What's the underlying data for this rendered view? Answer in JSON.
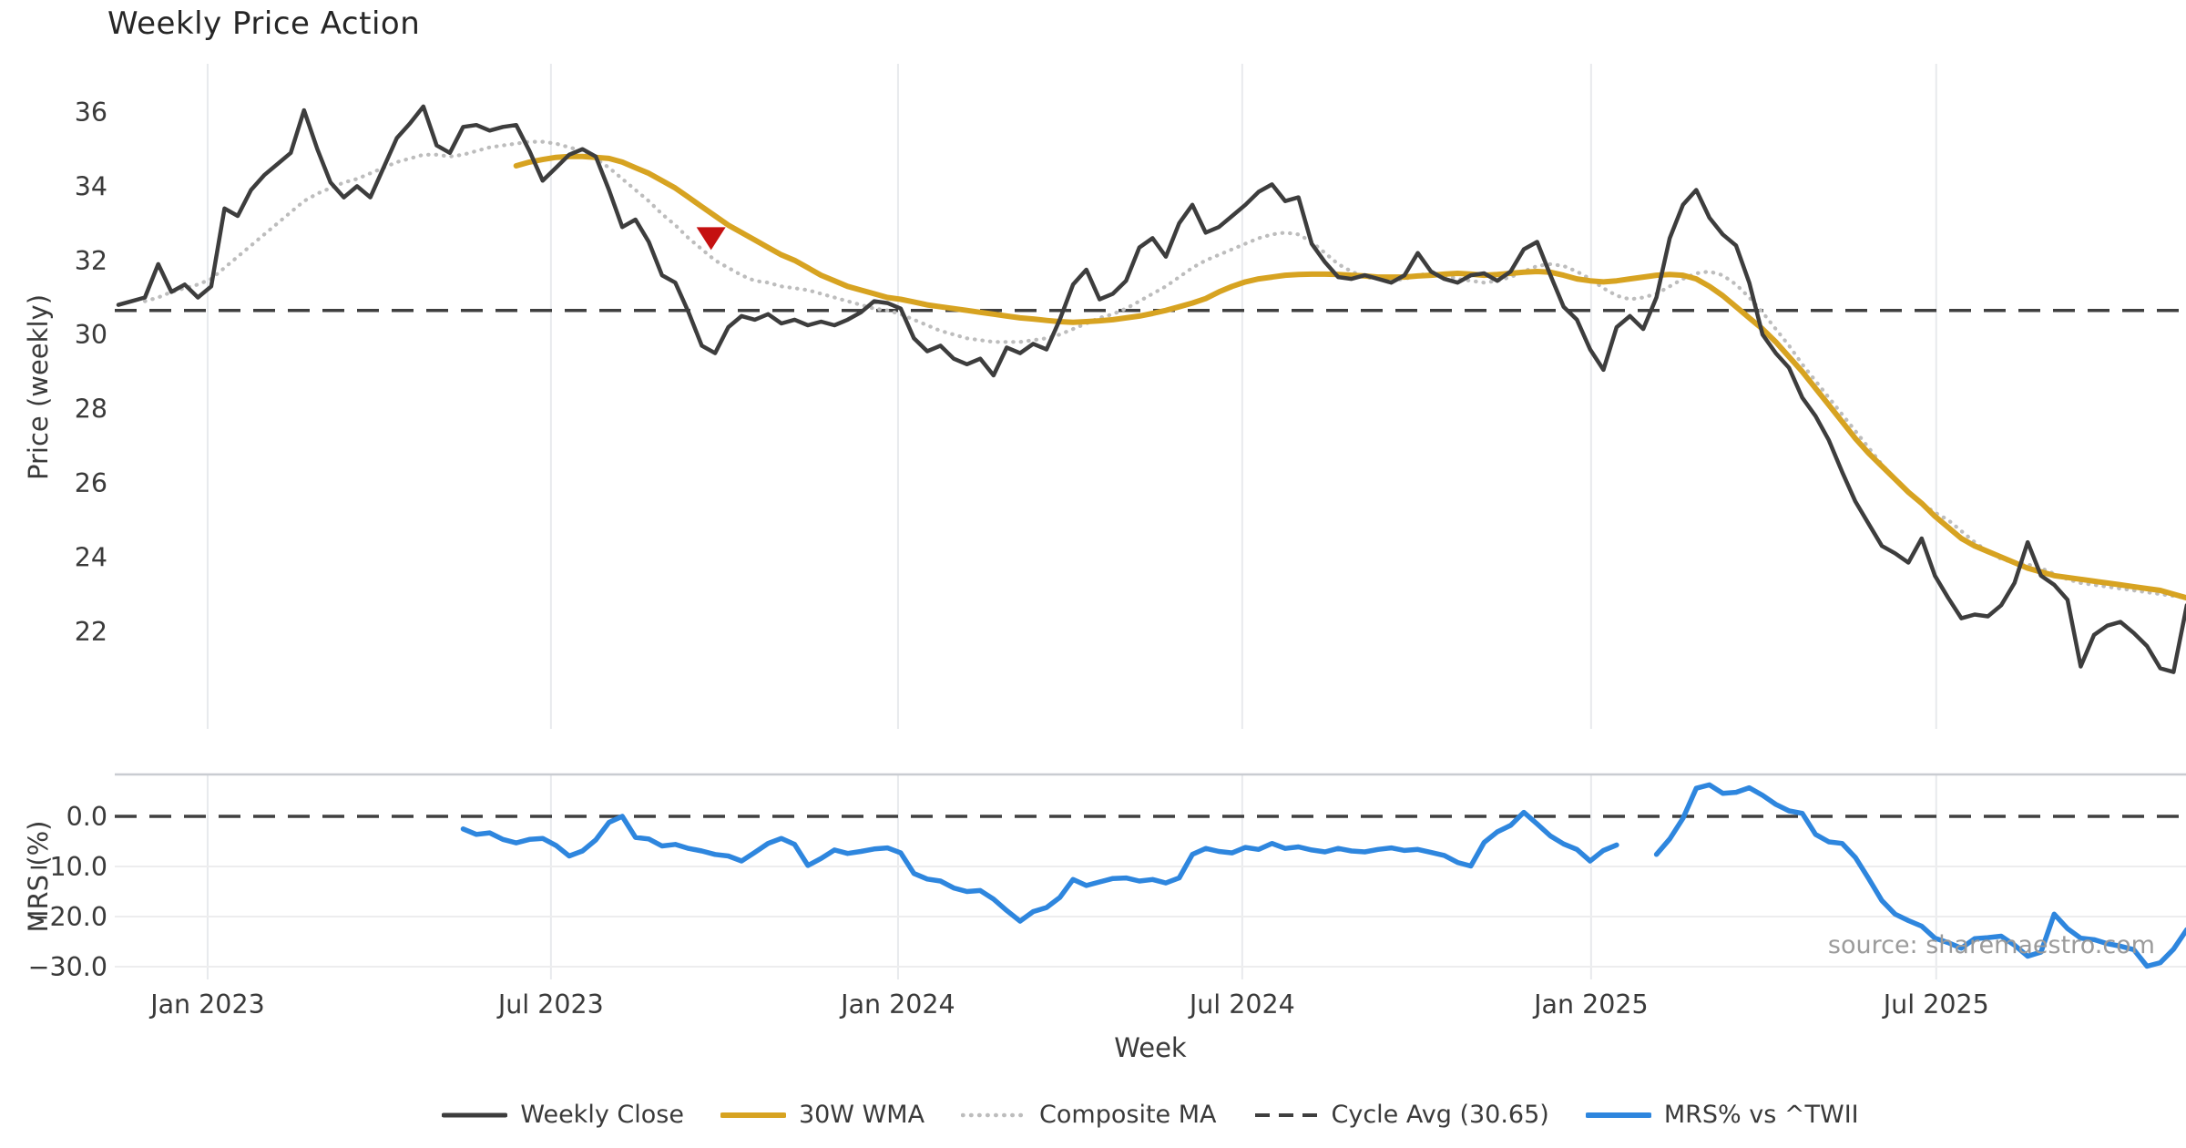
{
  "title": "Weekly Price Action",
  "source_note": "source: sharemaestro.com",
  "colors": {
    "close": "#3d3d3d",
    "wma": "#d7a321",
    "composite": "#bdbdbd",
    "cycle_avg": "#3f3f3f",
    "mrs": "#2e86de",
    "marker": "#c51111",
    "grid": "#e8eaed",
    "spine": "#c9ccd1",
    "tick_text": "#3a3a3a",
    "source_text": "#9b9b9b"
  },
  "legend": [
    {
      "label": "Weekly Close",
      "color": "#3d3d3d",
      "style": "solid",
      "width": 5
    },
    {
      "label": "30W WMA",
      "color": "#d7a321",
      "style": "solid",
      "width": 6
    },
    {
      "label": "Composite MA",
      "color": "#bdbdbd",
      "style": "dotted",
      "width": 4.5
    },
    {
      "label": "Cycle Avg (30.65)",
      "color": "#3f3f3f",
      "style": "dashed",
      "width": 4
    },
    {
      "label": "MRS% vs ^TWII",
      "color": "#2e86de",
      "style": "solid",
      "width": 6
    }
  ],
  "chart_data": {
    "type": "line",
    "xlabel": "Week",
    "x_unit": "weeks since mid-Nov 2022, weekly data",
    "xticks": [
      {
        "label": "Jan 2023",
        "week": 6.73
      },
      {
        "label": "Jul 2023",
        "week": 32.62
      },
      {
        "label": "Jan 2024",
        "week": 58.8
      },
      {
        "label": "Jul 2024",
        "week": 84.76
      },
      {
        "label": "Jan 2025",
        "week": 111.07
      },
      {
        "label": "Jul 2025",
        "week": 137.1
      }
    ],
    "panels": [
      {
        "name": "price",
        "ylabel": "Price (weekly)",
        "yticks": [
          36,
          34,
          32,
          30,
          28,
          26,
          24,
          22
        ],
        "ylim": [
          20.3,
          37.3
        ],
        "hline": {
          "value": 30.65,
          "label": "Cycle Avg (30.65)"
        },
        "marker": {
          "type": "triangle-down",
          "week": 44.7,
          "value": 32.6
        },
        "series": [
          {
            "name": "Weekly Close",
            "color": "#3d3d3d",
            "width": 4.5,
            "dash": "solid",
            "start_week": 0,
            "values": [
              30.8,
              30.9,
              31.0,
              31.9,
              31.15,
              31.35,
              31.0,
              31.3,
              33.4,
              33.2,
              33.9,
              34.3,
              34.6,
              34.9,
              36.05,
              35.0,
              34.1,
              33.7,
              34.0,
              33.7,
              34.5,
              35.3,
              35.7,
              36.15,
              35.1,
              34.9,
              35.6,
              35.65,
              35.5,
              35.6,
              35.65,
              34.95,
              34.15,
              34.5,
              34.85,
              35.0,
              34.8,
              33.9,
              32.9,
              33.1,
              32.5,
              31.6,
              31.4,
              30.6,
              29.7,
              29.5,
              30.2,
              30.5,
              30.4,
              30.55,
              30.3,
              30.4,
              30.25,
              30.35,
              30.25,
              30.4,
              30.6,
              30.9,
              30.85,
              30.7,
              29.9,
              29.55,
              29.7,
              29.35,
              29.2,
              29.35,
              28.9,
              29.65,
              29.5,
              29.75,
              29.6,
              30.4,
              31.35,
              31.75,
              30.95,
              31.1,
              31.45,
              32.35,
              32.6,
              32.1,
              33.0,
              33.5,
              32.75,
              32.9,
              33.2,
              33.5,
              33.85,
              34.05,
              33.6,
              33.7,
              32.45,
              31.95,
              31.55,
              31.5,
              31.6,
              31.5,
              31.4,
              31.6,
              32.2,
              31.7,
              31.5,
              31.4,
              31.6,
              31.65,
              31.45,
              31.7,
              32.3,
              32.5,
              31.6,
              30.75,
              30.4,
              29.6,
              29.05,
              30.2,
              30.5,
              30.15,
              31.0,
              32.6,
              33.5,
              33.9,
              33.15,
              32.7,
              32.4,
              31.4,
              30.0,
              29.5,
              29.1,
              28.3,
              27.8,
              27.15,
              26.3,
              25.5,
              24.9,
              24.3,
              24.1,
              23.85,
              24.5,
              23.5,
              22.9,
              22.35,
              22.45,
              22.4,
              22.7,
              23.3,
              24.4,
              23.5,
              23.25,
              22.85,
              21.05,
              21.9,
              22.15,
              22.25,
              21.95,
              21.6,
              21.0,
              20.9,
              22.7
            ]
          },
          {
            "name": "30W WMA",
            "color": "#d7a321",
            "width": 6,
            "dash": "solid",
            "start_week": 30,
            "values": [
              34.55,
              34.65,
              34.72,
              34.78,
              34.8,
              34.8,
              34.78,
              34.75,
              34.65,
              34.5,
              34.35,
              34.15,
              33.95,
              33.7,
              33.45,
              33.2,
              32.95,
              32.75,
              32.55,
              32.35,
              32.15,
              32.0,
              31.8,
              31.6,
              31.45,
              31.3,
              31.2,
              31.1,
              31.0,
              30.95,
              30.88,
              30.8,
              30.75,
              30.7,
              30.65,
              30.6,
              30.55,
              30.5,
              30.45,
              30.42,
              30.38,
              30.35,
              30.33,
              30.35,
              30.37,
              30.4,
              30.45,
              30.5,
              30.57,
              30.65,
              30.75,
              30.85,
              30.97,
              31.15,
              31.3,
              31.42,
              31.5,
              31.55,
              31.6,
              31.62,
              31.63,
              31.63,
              31.62,
              31.6,
              31.58,
              31.55,
              31.55,
              31.55,
              31.58,
              31.6,
              31.63,
              31.65,
              31.63,
              31.6,
              31.62,
              31.65,
              31.68,
              31.7,
              31.68,
              31.6,
              31.5,
              31.45,
              31.42,
              31.45,
              31.5,
              31.55,
              31.6,
              31.62,
              31.6,
              31.5,
              31.3,
              31.05,
              30.75,
              30.45,
              30.15,
              29.8,
              29.4,
              29.0,
              28.55,
              28.1,
              27.65,
              27.2,
              26.8,
              26.45,
              26.1,
              25.75,
              25.45,
              25.1,
              24.8,
              24.5,
              24.3,
              24.15,
              24.0,
              23.85,
              23.7,
              23.6,
              23.5,
              23.45,
              23.4,
              23.35,
              23.3,
              23.25,
              23.2,
              23.15,
              23.1,
              23.0,
              22.9
            ]
          },
          {
            "name": "Composite MA",
            "color": "#bdbdbd",
            "width": 4.2,
            "dash": "dotted",
            "start_week": 2,
            "values": [
              30.9,
              31.0,
              31.15,
              31.25,
              31.35,
              31.5,
              31.8,
              32.1,
              32.4,
              32.7,
              33.0,
              33.3,
              33.6,
              33.8,
              33.95,
              34.1,
              34.2,
              34.35,
              34.5,
              34.65,
              34.75,
              34.85,
              34.85,
              34.8,
              34.85,
              34.95,
              35.05,
              35.1,
              35.15,
              35.2,
              35.2,
              35.15,
              35.05,
              34.95,
              34.75,
              34.5,
              34.2,
              33.9,
              33.6,
              33.25,
              32.95,
              32.6,
              32.3,
              32.0,
              31.8,
              31.6,
              31.45,
              31.4,
              31.3,
              31.25,
              31.2,
              31.1,
              31.0,
              30.9,
              30.8,
              30.7,
              30.65,
              30.55,
              30.4,
              30.25,
              30.1,
              30.0,
              29.9,
              29.85,
              29.8,
              29.8,
              29.8,
              29.85,
              29.9,
              30.0,
              30.15,
              30.3,
              30.45,
              30.55,
              30.7,
              30.9,
              31.1,
              31.3,
              31.55,
              31.8,
              32.0,
              32.15,
              32.3,
              32.45,
              32.6,
              32.7,
              32.75,
              32.7,
              32.5,
              32.2,
              31.9,
              31.7,
              31.55,
              31.5,
              31.45,
              31.5,
              31.6,
              31.65,
              31.6,
              31.5,
              31.45,
              31.4,
              31.45,
              31.55,
              31.7,
              31.85,
              31.9,
              31.85,
              31.7,
              31.5,
              31.25,
              31.05,
              30.95,
              31.0,
              31.1,
              31.3,
              31.5,
              31.65,
              31.7,
              31.6,
              31.35,
              31.0,
              30.6,
              30.15,
              29.7,
              29.2,
              28.75,
              28.3,
              27.85,
              27.4,
              26.95,
              26.5,
              26.1,
              25.75,
              25.45,
              25.2,
              25.0,
              24.7,
              24.4,
              24.15,
              23.95,
              23.85,
              23.8,
              23.7,
              23.55,
              23.4,
              23.3,
              23.25,
              23.2,
              23.15,
              23.1,
              23.05,
              23.0,
              22.95,
              22.9
            ]
          }
        ]
      },
      {
        "name": "mrs",
        "ylabel": "MRS (%)",
        "yticks": [
          0.0,
          -10.0,
          -20.0,
          -30.0
        ],
        "ytick_labels": [
          "0.0",
          "−10.0",
          "−20.0",
          "−30.0"
        ],
        "ylim": [
          -32.5,
          8.4
        ],
        "hline": {
          "value": 0.0
        },
        "series": [
          {
            "name": "MRS% vs ^TWII",
            "color": "#2e86de",
            "width": 5.5,
            "dash": "solid",
            "start_week": 26,
            "values": [
              -2.5,
              -3.6,
              -3.3,
              -4.6,
              -5.3,
              -4.6,
              -4.4,
              -5.8,
              -7.9,
              -6.9,
              -4.7,
              -1.2,
              0.0,
              -4.2,
              -4.5,
              -5.9,
              -5.6,
              -6.4,
              -6.9,
              -7.6,
              -7.9,
              -8.9,
              -7.2,
              -5.4,
              -4.4,
              -5.6,
              -9.8,
              -8.4,
              -6.7,
              -7.4,
              -7.0,
              -6.5,
              -6.3,
              -7.3,
              -11.4,
              -12.5,
              -12.9,
              -14.3,
              -15.0,
              -14.8,
              -16.5,
              -18.8,
              -20.9,
              -19.0,
              -18.2,
              -16.2,
              -12.6,
              -13.8,
              -13.1,
              -12.4,
              -12.3,
              -12.9,
              -12.6,
              -13.3,
              -12.3,
              -7.6,
              -6.4,
              -7.0,
              -7.3,
              -6.2,
              -6.6,
              -5.4,
              -6.4,
              -6.1,
              -6.7,
              -7.1,
              -6.4,
              -6.9,
              -7.1,
              -6.6,
              -6.3,
              -6.8,
              -6.6,
              -7.2,
              -7.8,
              -9.2,
              -9.9,
              -5.2,
              -3.1,
              -1.8,
              0.8,
              -1.5,
              -3.9,
              -5.5,
              -6.6,
              -8.9,
              -6.8,
              -5.7,
              null,
              null,
              -7.6,
              -4.5,
              -0.4,
              5.6,
              6.3,
              4.6,
              4.8,
              5.7,
              4.2,
              2.4,
              1.1,
              0.6,
              -3.6,
              -5.1,
              -5.4,
              -8.2,
              -12.4,
              -16.8,
              -19.5,
              -20.8,
              -21.9,
              -24.3,
              -25.2,
              -26.3,
              -24.4,
              -24.2,
              -23.9,
              -25.7,
              -27.9,
              -27.1,
              -19.5,
              -22.4,
              -24.3,
              -24.6,
              -25.4,
              -25.9,
              -26.6,
              -29.9,
              -29.2,
              -26.5,
              -22.6
            ]
          }
        ]
      }
    ]
  }
}
